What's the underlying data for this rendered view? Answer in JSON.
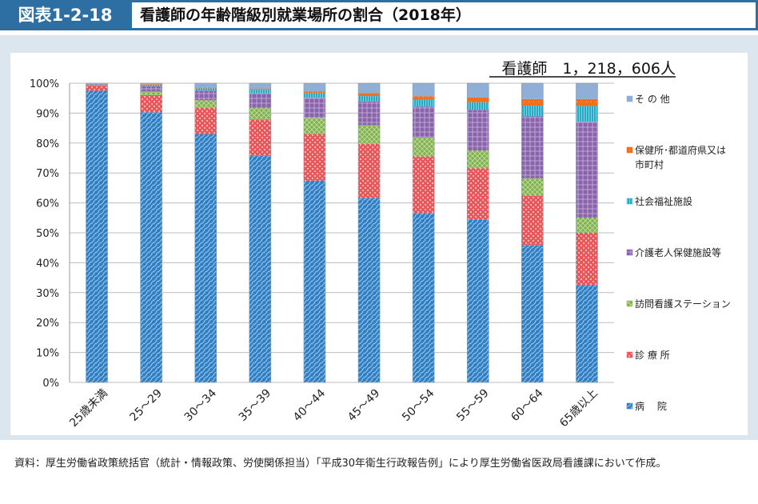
{
  "header": {
    "figure_label": "図表1-2-18",
    "title": "看護師の年齢階級別就業場所の割合（2018年）"
  },
  "chart_data": {
    "type": "bar",
    "stacked": true,
    "annotation": "看護師　1，218，606人",
    "categories": [
      "25歳未満",
      "25～29",
      "30～34",
      "35～39",
      "40～44",
      "45～49",
      "50～54",
      "55～59",
      "60～64",
      "65歳以上"
    ],
    "yticks": [
      "0%",
      "10%",
      "20%",
      "30%",
      "40%",
      "50%",
      "60%",
      "70%",
      "80%",
      "90%",
      "100%"
    ],
    "ylim": [
      0,
      100
    ],
    "grid": true,
    "legend_position": "right",
    "series": [
      {
        "name": "病　 院",
        "color": "#2f7fc4",
        "values": [
          97.5,
          90.3,
          83.0,
          75.7,
          67.4,
          61.7,
          56.6,
          54.5,
          45.9,
          32.5
        ]
      },
      {
        "name": "診 療 所",
        "color": "#e8575a",
        "values": [
          1.8,
          5.7,
          8.7,
          12.2,
          15.6,
          18.0,
          18.9,
          17.1,
          16.6,
          17.5
        ]
      },
      {
        "name": "訪問看護ステーション",
        "color": "#7fb24a",
        "values": [
          0.1,
          1.2,
          2.6,
          3.8,
          5.4,
          6.2,
          6.3,
          5.9,
          5.7,
          5.1
        ]
      },
      {
        "name": "介護老人保健施設等",
        "color": "#8a63ad",
        "values": [
          0.2,
          1.8,
          3.2,
          4.9,
          6.7,
          8.0,
          10.4,
          13.6,
          20.7,
          32.0
        ]
      },
      {
        "name": "社会福祉施設",
        "color": "#27aac6",
        "values": [
          0.1,
          0.5,
          0.8,
          1.2,
          1.6,
          1.8,
          2.3,
          2.5,
          3.6,
          5.3
        ]
      },
      {
        "name": "保健所･都道府県又は市町村",
        "color": "#f26f1e",
        "values": [
          0.1,
          0.2,
          0.3,
          0.3,
          0.5,
          1.0,
          1.1,
          1.6,
          2.2,
          2.3
        ]
      },
      {
        "name": "そ の 他",
        "color": "#8fafd6",
        "values": [
          0.2,
          0.3,
          1.4,
          1.9,
          2.8,
          3.3,
          4.4,
          4.8,
          5.3,
          5.3
        ]
      }
    ]
  },
  "footer": {
    "source": "資料：厚生労働省政策統括官（統計・情報政策、労使関係担当）「平成30年衛生行政報告例」により厚生労働省医政局看護課において作成。"
  }
}
